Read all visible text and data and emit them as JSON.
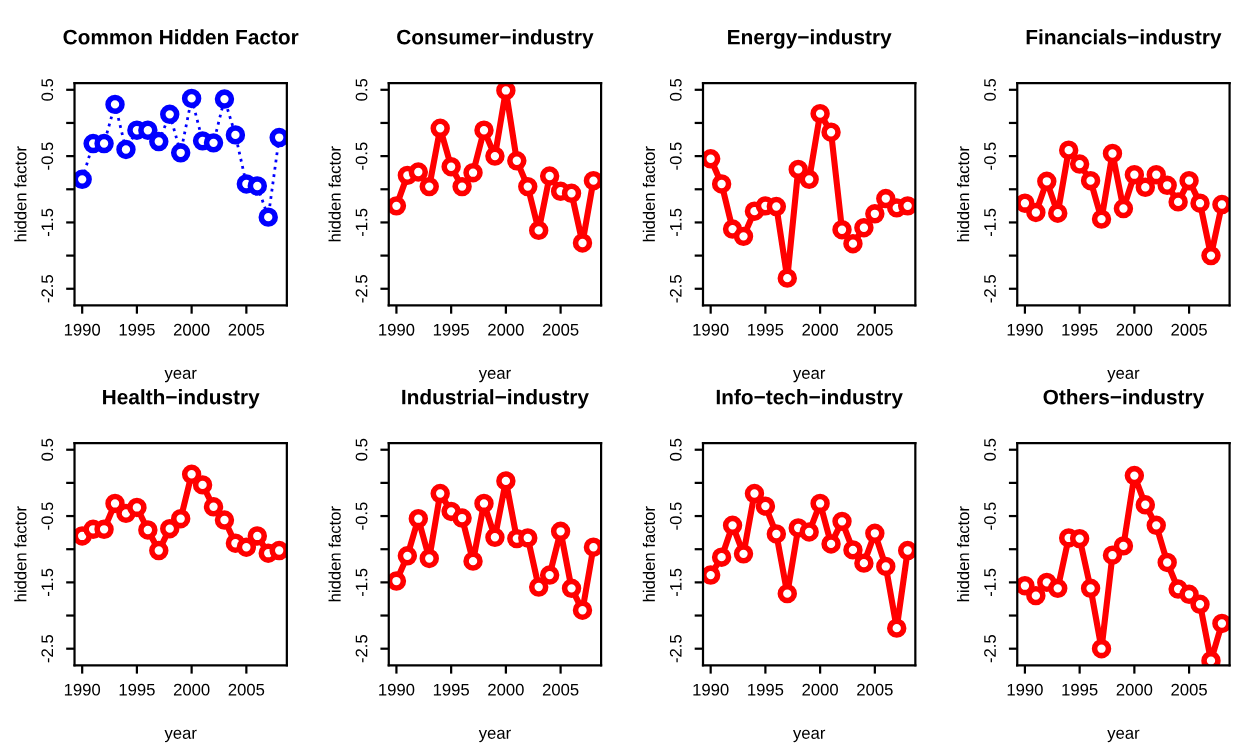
{
  "chart_data": [
    {
      "type": "line",
      "title": "Common Hidden Factor",
      "xlabel": "year",
      "ylabel": "hidden factor",
      "x": [
        1990,
        1991,
        1992,
        1993,
        1994,
        1995,
        1996,
        1997,
        1998,
        1999,
        2000,
        2001,
        2002,
        2003,
        2004,
        2005,
        2006,
        2007,
        2008
      ],
      "series": [
        {
          "color": "#0000ff",
          "values": [
            -0.85,
            -0.31,
            -0.31,
            0.28,
            -0.4,
            -0.11,
            -0.11,
            -0.28,
            0.13,
            -0.45,
            0.37,
            -0.27,
            -0.3,
            0.36,
            -0.18,
            -0.92,
            -0.95,
            -1.42,
            -0.22
          ]
        }
      ],
      "marker": "circle",
      "line_style": "dotted",
      "xlim": [
        1989.3,
        2008.7
      ],
      "ylim": [
        -2.75,
        0.6
      ],
      "xticks": [
        1990,
        1995,
        2000,
        2005
      ],
      "yticks": [
        0.5,
        {
          "value": 0,
          "label": null
        },
        -0.5,
        {
          "value": -1,
          "label": null
        },
        -1.5,
        {
          "value": -2,
          "label": null
        },
        -2.5
      ],
      "grid": false,
      "legend": false
    },
    {
      "type": "line",
      "title": "Consumer−industry",
      "xlabel": "year",
      "ylabel": "hidden factor",
      "x": [
        1990,
        1991,
        1992,
        1993,
        1994,
        1995,
        1996,
        1997,
        1998,
        1999,
        2000,
        2001,
        2002,
        2003,
        2004,
        2005,
        2006,
        2007,
        2008
      ],
      "series": [
        {
          "color": "#ff0000",
          "values": [
            -1.25,
            -0.79,
            -0.74,
            -0.96,
            -0.08,
            -0.66,
            -0.96,
            -0.75,
            -0.11,
            -0.5,
            0.49,
            -0.57,
            -0.96,
            -1.62,
            -0.8,
            -1.03,
            -1.06,
            -1.81,
            -0.87
          ]
        }
      ],
      "marker": "circle",
      "line_style": "solid",
      "xlim": [
        1989.3,
        2008.7
      ],
      "ylim": [
        -2.75,
        0.6
      ],
      "xticks": [
        1990,
        1995,
        2000,
        2005
      ],
      "yticks": [
        0.5,
        {
          "value": 0,
          "label": null
        },
        -0.5,
        {
          "value": -1,
          "label": null
        },
        -1.5,
        {
          "value": -2,
          "label": null
        },
        -2.5
      ],
      "grid": false,
      "legend": false
    },
    {
      "type": "line",
      "title": "Energy−industry",
      "xlabel": "year",
      "ylabel": "hidden factor",
      "x": [
        1990,
        1991,
        1992,
        1993,
        1994,
        1995,
        1996,
        1997,
        1998,
        1999,
        2000,
        2001,
        2002,
        2003,
        2004,
        2005,
        2006,
        2007,
        2008
      ],
      "series": [
        {
          "color": "#ff0000",
          "values": [
            -0.54,
            -0.92,
            -1.6,
            -1.71,
            -1.33,
            -1.25,
            -1.26,
            -2.34,
            -0.7,
            -0.85,
            0.14,
            -0.14,
            -1.61,
            -1.82,
            -1.58,
            -1.37,
            -1.14,
            -1.28,
            -1.25
          ]
        }
      ],
      "marker": "circle",
      "line_style": "solid",
      "xlim": [
        1989.3,
        2008.7
      ],
      "ylim": [
        -2.75,
        0.6
      ],
      "xticks": [
        1990,
        1995,
        2000,
        2005
      ],
      "yticks": [
        0.5,
        {
          "value": 0,
          "label": null
        },
        -0.5,
        {
          "value": -1,
          "label": null
        },
        -1.5,
        {
          "value": -2,
          "label": null
        },
        -2.5
      ],
      "grid": false,
      "legend": false
    },
    {
      "type": "line",
      "title": "Financials−industry",
      "xlabel": "year",
      "ylabel": "hidden factor",
      "x": [
        1990,
        1991,
        1992,
        1993,
        1994,
        1995,
        1996,
        1997,
        1998,
        1999,
        2000,
        2001,
        2002,
        2003,
        2004,
        2005,
        2006,
        2007,
        2008
      ],
      "series": [
        {
          "color": "#ff0000",
          "values": [
            -1.21,
            -1.35,
            -0.88,
            -1.36,
            -0.41,
            -0.62,
            -0.87,
            -1.45,
            -0.46,
            -1.29,
            -0.78,
            -0.97,
            -0.78,
            -0.94,
            -1.19,
            -0.87,
            -1.21,
            -2.0,
            -1.23
          ]
        }
      ],
      "marker": "circle",
      "line_style": "solid",
      "xlim": [
        1989.3,
        2008.7
      ],
      "ylim": [
        -2.75,
        0.6
      ],
      "xticks": [
        1990,
        1995,
        2000,
        2005
      ],
      "yticks": [
        0.5,
        {
          "value": 0,
          "label": null
        },
        -0.5,
        {
          "value": -1,
          "label": null
        },
        -1.5,
        {
          "value": -2,
          "label": null
        },
        -2.5
      ],
      "grid": false,
      "legend": false
    },
    {
      "type": "line",
      "title": "Health−industry",
      "xlabel": "year",
      "ylabel": "hidden factor",
      "x": [
        1990,
        1991,
        1992,
        1993,
        1994,
        1995,
        1996,
        1997,
        1998,
        1999,
        2000,
        2001,
        2002,
        2003,
        2004,
        2005,
        2006,
        2007,
        2008
      ],
      "series": [
        {
          "color": "#ff0000",
          "values": [
            -0.8,
            -0.7,
            -0.7,
            -0.31,
            -0.46,
            -0.37,
            -0.71,
            -1.02,
            -0.69,
            -0.54,
            0.13,
            -0.03,
            -0.36,
            -0.56,
            -0.91,
            -0.97,
            -0.8,
            -1.06,
            -1.02
          ]
        }
      ],
      "marker": "circle",
      "line_style": "solid",
      "xlim": [
        1989.3,
        2008.7
      ],
      "ylim": [
        -2.75,
        0.6
      ],
      "xticks": [
        1990,
        1995,
        2000,
        2005
      ],
      "yticks": [
        0.5,
        {
          "value": 0,
          "label": null
        },
        -0.5,
        {
          "value": -1,
          "label": null
        },
        -1.5,
        {
          "value": -2,
          "label": null
        },
        -2.5
      ],
      "grid": false,
      "legend": false
    },
    {
      "type": "line",
      "title": "Industrial−industry",
      "xlabel": "year",
      "ylabel": "hidden factor",
      "x": [
        1990,
        1991,
        1992,
        1993,
        1994,
        1995,
        1996,
        1997,
        1998,
        1999,
        2000,
        2001,
        2002,
        2003,
        2004,
        2005,
        2006,
        2007,
        2008
      ],
      "series": [
        {
          "color": "#ff0000",
          "values": [
            -1.48,
            -1.1,
            -0.54,
            -1.14,
            -0.16,
            -0.43,
            -0.53,
            -1.18,
            -0.31,
            -0.82,
            0.03,
            -0.84,
            -0.83,
            -1.57,
            -1.39,
            -0.73,
            -1.59,
            -1.92,
            -0.97
          ]
        }
      ],
      "marker": "circle",
      "line_style": "solid",
      "xlim": [
        1989.3,
        2008.7
      ],
      "ylim": [
        -2.75,
        0.6
      ],
      "xticks": [
        1990,
        1995,
        2000,
        2005
      ],
      "yticks": [
        0.5,
        {
          "value": 0,
          "label": null
        },
        -0.5,
        {
          "value": -1,
          "label": null
        },
        -1.5,
        {
          "value": -2,
          "label": null
        },
        -2.5
      ],
      "grid": false,
      "legend": false
    },
    {
      "type": "line",
      "title": "Info−tech−industry",
      "xlabel": "year",
      "ylabel": "hidden factor",
      "x": [
        1990,
        1991,
        1992,
        1993,
        1994,
        1995,
        1996,
        1997,
        1998,
        1999,
        2000,
        2001,
        2002,
        2003,
        2004,
        2005,
        2006,
        2007,
        2008
      ],
      "series": [
        {
          "color": "#ff0000",
          "values": [
            -1.39,
            -1.12,
            -0.64,
            -1.07,
            -0.16,
            -0.35,
            -0.77,
            -1.67,
            -0.68,
            -0.74,
            -0.31,
            -0.92,
            -0.58,
            -1.01,
            -1.21,
            -0.76,
            -1.26,
            -2.19,
            -1.02
          ]
        }
      ],
      "marker": "circle",
      "line_style": "solid",
      "xlim": [
        1989.3,
        2008.7
      ],
      "ylim": [
        -2.75,
        0.6
      ],
      "xticks": [
        1990,
        1995,
        2000,
        2005
      ],
      "yticks": [
        0.5,
        {
          "value": 0,
          "label": null
        },
        -0.5,
        {
          "value": -1,
          "label": null
        },
        -1.5,
        {
          "value": -2,
          "label": null
        },
        -2.5
      ],
      "grid": false,
      "legend": false
    },
    {
      "type": "line",
      "title": "Others−industry",
      "xlabel": "year",
      "ylabel": "hidden factor",
      "x": [
        1990,
        1991,
        1992,
        1993,
        1994,
        1995,
        1996,
        1997,
        1998,
        1999,
        2000,
        2001,
        2002,
        2003,
        2004,
        2005,
        2006,
        2007,
        2008
      ],
      "series": [
        {
          "color": "#ff0000",
          "values": [
            -1.55,
            -1.7,
            -1.5,
            -1.59,
            -0.83,
            -0.84,
            -1.59,
            -2.5,
            -1.09,
            -0.95,
            0.11,
            -0.33,
            -0.64,
            -1.2,
            -1.6,
            -1.68,
            -1.83,
            -2.68,
            -2.12
          ]
        }
      ],
      "marker": "circle",
      "line_style": "solid",
      "xlim": [
        1989.3,
        2008.7
      ],
      "ylim": [
        -2.75,
        0.6
      ],
      "xticks": [
        1990,
        1995,
        2000,
        2005
      ],
      "yticks": [
        0.5,
        {
          "value": 0,
          "label": null
        },
        -0.5,
        {
          "value": -1,
          "label": null
        },
        -1.5,
        {
          "value": -2,
          "label": null
        },
        -2.5
      ],
      "grid": false,
      "legend": false
    }
  ]
}
